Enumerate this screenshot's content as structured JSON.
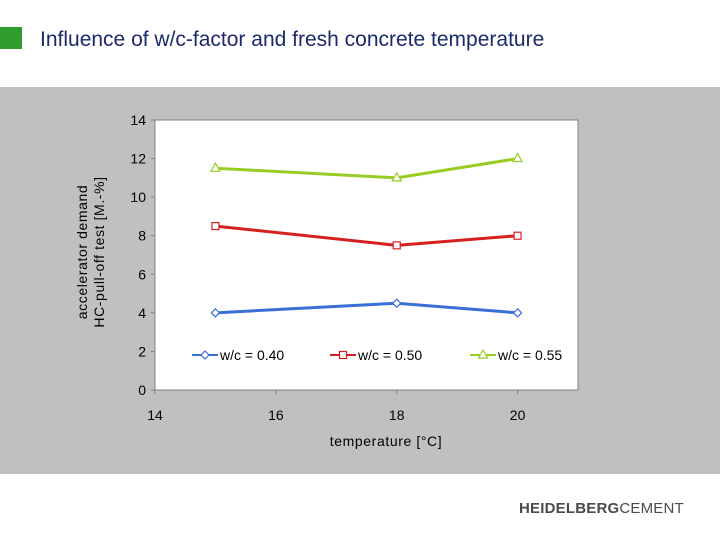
{
  "slide": {
    "title": "Influence of w/c-factor and fresh concrete temperature"
  },
  "logo": {
    "part1": "HEIDELBERG",
    "part2": "CEMENT",
    "colors": {
      "primary": "#4a4a4a",
      "accent": "#2f9e2f"
    }
  },
  "chart_data": {
    "type": "line",
    "title": "",
    "xlabel": "temperature [°C]",
    "ylabel_line1": "accelerator demand",
    "ylabel_line2": "HC-pull-off test [M.-%]",
    "xlim": [
      14,
      21
    ],
    "ylim": [
      0,
      14
    ],
    "xticks": [
      14,
      16,
      18,
      20
    ],
    "yticks": [
      0,
      2,
      4,
      6,
      8,
      10,
      12,
      14
    ],
    "grid": false,
    "legend_position": "bottom-inside",
    "series": [
      {
        "name": "w/c = 0.40",
        "marker": "diamond",
        "color": "#3a6fd8",
        "x": [
          15,
          18,
          20
        ],
        "y": [
          4.0,
          4.5,
          4.0
        ]
      },
      {
        "name": "w/c = 0.50",
        "marker": "square",
        "color": "#d62020",
        "x": [
          15,
          18,
          20
        ],
        "y": [
          8.5,
          7.5,
          8.0
        ]
      },
      {
        "name": "w/c = 0.55",
        "marker": "triangle",
        "color": "#99cc22",
        "x": [
          15,
          18,
          20
        ],
        "y": [
          11.5,
          11.0,
          12.0
        ]
      }
    ]
  }
}
